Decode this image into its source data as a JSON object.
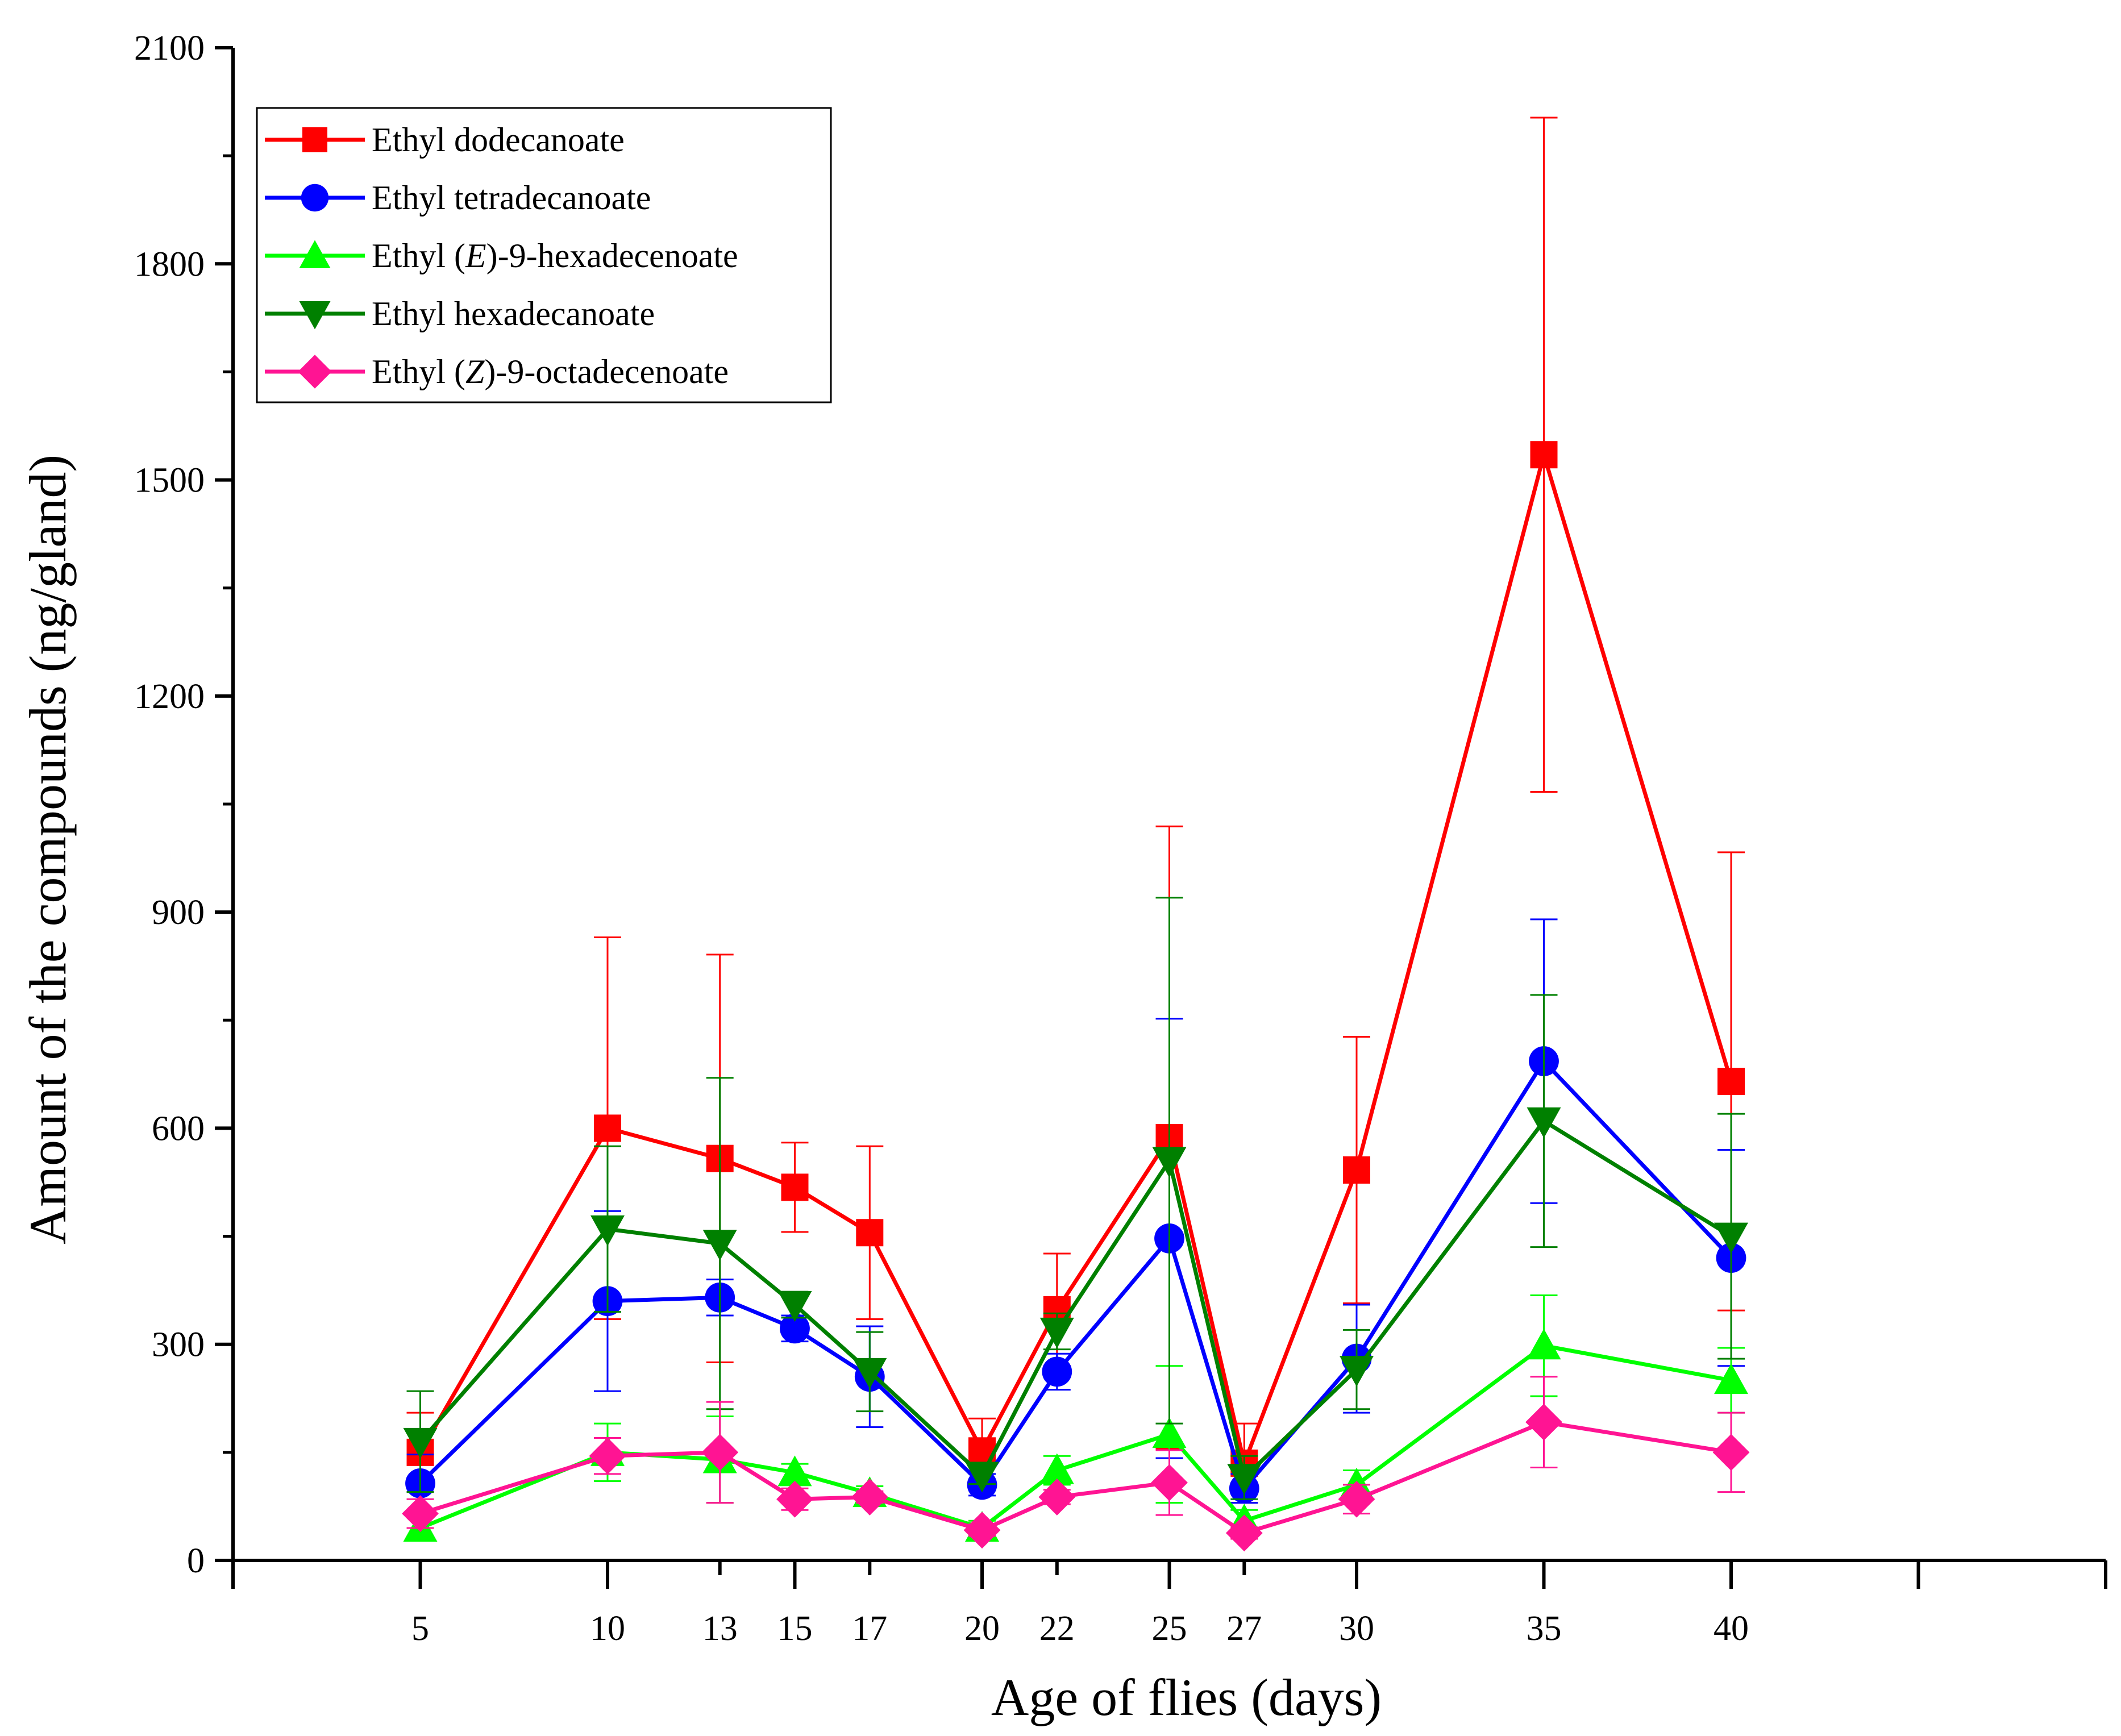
{
  "chart_data": {
    "type": "line",
    "title": "",
    "xlabel": "Age of flies (days)",
    "ylabel": "Amount of the compounds (ng/gland)",
    "ylim": [
      0,
      2100
    ],
    "yticks": [
      0,
      300,
      600,
      900,
      1200,
      1500,
      1800,
      2100
    ],
    "x": [
      5,
      10,
      13,
      15,
      17,
      20,
      22,
      25,
      27,
      30,
      35,
      40
    ],
    "legend_position": "top-left",
    "grid": false,
    "series": [
      {
        "name_parts": [
          "Ethyl dodecanoate"
        ],
        "italic_part": "",
        "marker": "square",
        "color": "#ff0000",
        "values": [
          150,
          600,
          558,
          518,
          455,
          152,
          348,
          587,
          135,
          542,
          1535,
          665
        ],
        "errors": [
          55,
          265,
          283,
          62,
          120,
          45,
          78,
          432,
          55,
          185,
          468,
          318
        ]
      },
      {
        "name_parts": [
          "Ethyl tetradecanoate"
        ],
        "italic_part": "",
        "marker": "circle",
        "color": "#0000ff",
        "values": [
          107,
          360,
          365,
          322,
          255,
          105,
          262,
          447,
          100,
          280,
          693,
          420
        ],
        "errors": [
          40,
          125,
          25,
          18,
          70,
          15,
          25,
          305,
          20,
          75,
          197,
          150
        ]
      },
      {
        "name_parts": [
          "Ethyl (",
          "E",
          ")-9-hexadecenoate"
        ],
        "italic_part": "E",
        "marker": "triangle-up",
        "color": "#00ff00",
        "values": [
          45,
          150,
          140,
          122,
          93,
          45,
          125,
          175,
          55,
          105,
          298,
          250
        ],
        "errors": [
          15,
          40,
          60,
          12,
          10,
          10,
          20,
          95,
          15,
          20,
          70,
          45
        ]
      },
      {
        "name_parts": [
          "Ethyl hexadecanoate"
        ],
        "italic_part": "",
        "marker": "triangle-down",
        "color": "#008000",
        "values": [
          165,
          460,
          440,
          355,
          262,
          118,
          318,
          555,
          115,
          265,
          610,
          450
        ],
        "errors": [
          70,
          115,
          230,
          18,
          55,
          12,
          25,
          365,
          30,
          55,
          175,
          170
        ]
      },
      {
        "name_parts": [
          "Ethyl (",
          "Z",
          ")-9-octadecenoate"
        ],
        "italic_part": "Z",
        "marker": "diamond",
        "color": "#ff1493",
        "values": [
          65,
          145,
          150,
          85,
          88,
          42,
          88,
          108,
          38,
          85,
          192,
          150
        ],
        "errors": [
          20,
          25,
          70,
          15,
          8,
          8,
          10,
          45,
          8,
          20,
          63,
          55
        ]
      }
    ]
  }
}
